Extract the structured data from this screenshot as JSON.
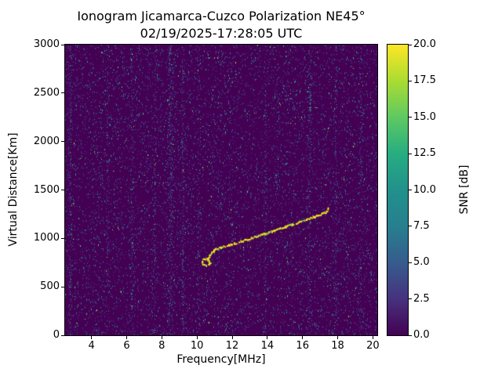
{
  "chart_data": {
    "type": "heatmap",
    "title": "Ionogram Jicamarca-Cuzco Polarization NE45°",
    "subtitle": "02/19/2025-17:28:05 UTC",
    "xlabel": "Frequency[MHz]",
    "ylabel": "Virtual Distance[Km]",
    "colorbar_label": "SNR [dB]",
    "xlim": [
      2.5,
      20.25
    ],
    "ylim": [
      0,
      3000
    ],
    "clim": [
      0,
      20
    ],
    "x_ticks": [
      4,
      6,
      8,
      10,
      12,
      14,
      16,
      18,
      20
    ],
    "x_tick_labels": [
      "4",
      "6",
      "8",
      "10",
      "12",
      "14",
      "16",
      "18",
      "20"
    ],
    "y_ticks": [
      0,
      500,
      1000,
      1500,
      2000,
      2500,
      3000
    ],
    "y_tick_labels": [
      "0",
      "500",
      "1000",
      "1500",
      "2000",
      "2500",
      "3000"
    ],
    "cb_ticks": [
      0,
      2.5,
      5,
      7.5,
      10,
      12.5,
      15,
      17.5,
      20
    ],
    "cb_tick_labels": [
      "0.0",
      "2.5",
      "5.0",
      "7.5",
      "10.0",
      "12.5",
      "15.0",
      "17.5",
      "20.0"
    ],
    "colormap": [
      {
        "t": 0.0,
        "c": "#440154"
      },
      {
        "t": 0.125,
        "c": "#46327e"
      },
      {
        "t": 0.25,
        "c": "#365c8d"
      },
      {
        "t": 0.375,
        "c": "#277f8e"
      },
      {
        "t": 0.5,
        "c": "#21918c"
      },
      {
        "t": 0.625,
        "c": "#27ad81"
      },
      {
        "t": 0.75,
        "c": "#5ec962"
      },
      {
        "t": 0.875,
        "c": "#aadc32"
      },
      {
        "t": 1.0,
        "c": "#fde725"
      }
    ],
    "noise": {
      "seed": 20250219,
      "background": "#440154",
      "speckles": 8500,
      "palette": [
        {
          "c": "#46327e",
          "w": 0.44
        },
        {
          "c": "#3b518b",
          "w": 0.25
        },
        {
          "c": "#2c718e",
          "w": 0.15
        },
        {
          "c": "#21918c",
          "w": 0.08
        },
        {
          "c": "#27ad81",
          "w": 0.05
        },
        {
          "c": "#5ec962",
          "w": 0.02
        },
        {
          "c": "#aadc32",
          "w": 0.01
        }
      ],
      "streaks": [
        {
          "f": 2.8,
          "count": 230,
          "spread": 2.5
        },
        {
          "f": 4.9,
          "count": 120,
          "spread": 2
        },
        {
          "f": 6.3,
          "count": 160,
          "spread": 2
        },
        {
          "f": 7.6,
          "count": 120,
          "spread": 2
        },
        {
          "f": 8.5,
          "count": 380,
          "spread": 4
        },
        {
          "f": 9.2,
          "count": 200,
          "spread": 2.5
        },
        {
          "f": 10.1,
          "count": 120,
          "spread": 2
        },
        {
          "f": 13.9,
          "count": 110,
          "spread": 2
        },
        {
          "f": 16.4,
          "count": 200,
          "spread": 2.5
        },
        {
          "f": 17.9,
          "count": 140,
          "spread": 2
        },
        {
          "f": 19.3,
          "count": 110,
          "spread": 2
        }
      ]
    },
    "trace": {
      "colors": [
        {
          "c": "#f4e61e",
          "w": 0.72
        },
        {
          "c": "#d8e219",
          "w": 0.16
        },
        {
          "c": "#74d055",
          "w": 0.12
        }
      ],
      "hook": [
        [
          10.5,
          800
        ],
        [
          10.35,
          788
        ],
        [
          10.28,
          765
        ],
        [
          10.3,
          742
        ],
        [
          10.45,
          725
        ],
        [
          10.62,
          732
        ],
        [
          10.7,
          755
        ],
        [
          10.63,
          778
        ],
        [
          10.52,
          790
        ]
      ],
      "main": [
        [
          10.62,
          800
        ],
        [
          10.7,
          828
        ],
        [
          10.82,
          858
        ],
        [
          10.95,
          882
        ],
        [
          11.15,
          900
        ],
        [
          11.45,
          920
        ],
        [
          11.8,
          938
        ],
        [
          12.2,
          958
        ],
        [
          12.6,
          982
        ],
        [
          13.0,
          1006
        ],
        [
          13.4,
          1030
        ],
        [
          13.8,
          1055
        ],
        [
          14.2,
          1078
        ],
        [
          14.6,
          1102
        ],
        [
          15.0,
          1126
        ],
        [
          15.4,
          1150
        ],
        [
          15.8,
          1174
        ],
        [
          16.2,
          1200
        ],
        [
          16.6,
          1226
        ],
        [
          16.95,
          1250
        ],
        [
          17.25,
          1272
        ]
      ],
      "tail": [
        [
          17.28,
          1262
        ],
        [
          17.38,
          1288
        ],
        [
          17.45,
          1312
        ]
      ]
    }
  }
}
